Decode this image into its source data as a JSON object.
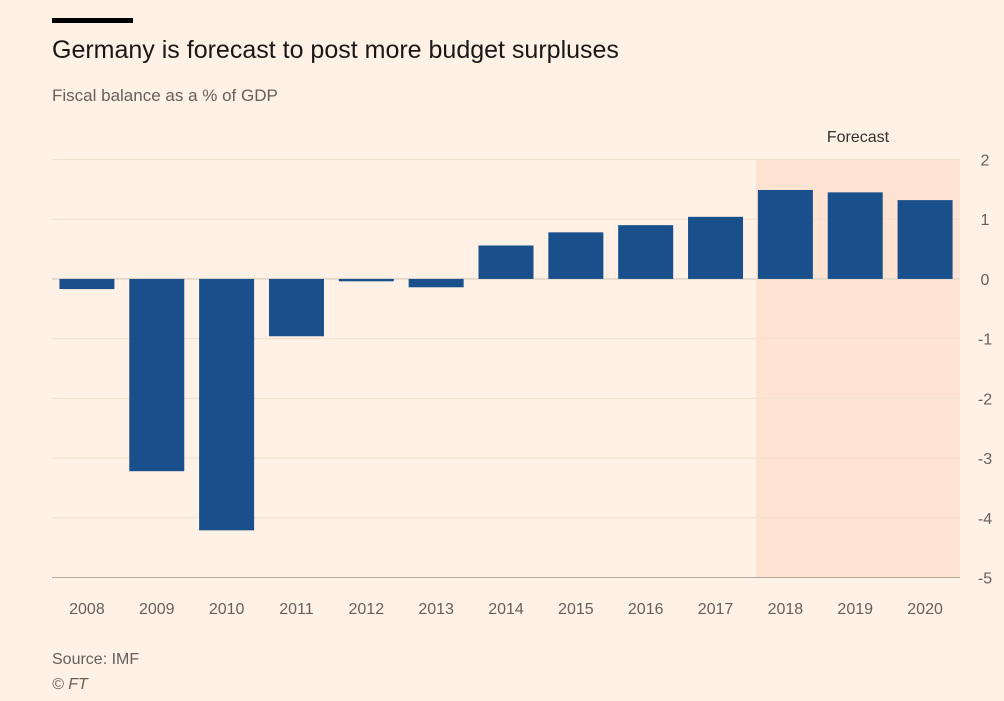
{
  "header": {
    "title": "Germany is forecast to post more budget surpluses",
    "subtitle": "Fiscal balance as a % of GDP"
  },
  "footer": {
    "source": "Source: IMF",
    "copyright": "© FT"
  },
  "chart_data": {
    "type": "bar",
    "title": "Germany is forecast to post more budget surpluses",
    "subtitle": "Fiscal balance as a % of GDP",
    "categories": [
      "2008",
      "2009",
      "2010",
      "2011",
      "2012",
      "2013",
      "2014",
      "2015",
      "2016",
      "2017",
      "2018",
      "2019",
      "2020"
    ],
    "values": [
      -0.17,
      -3.22,
      -4.21,
      -0.96,
      -0.04,
      -0.14,
      0.56,
      0.78,
      0.9,
      1.04,
      1.49,
      1.45,
      1.32
    ],
    "ylim": [
      -5,
      2
    ],
    "yticks": [
      "2",
      "1",
      "0",
      "-1",
      "-2",
      "-3",
      "-4",
      "-5"
    ],
    "yaxis_position": "right",
    "grid": true,
    "forecast": {
      "label": "Forecast",
      "from": "2018",
      "to": "2020",
      "color": "#ffe3d2"
    },
    "bar_color": "#19508c",
    "background": "#fff1e5"
  }
}
